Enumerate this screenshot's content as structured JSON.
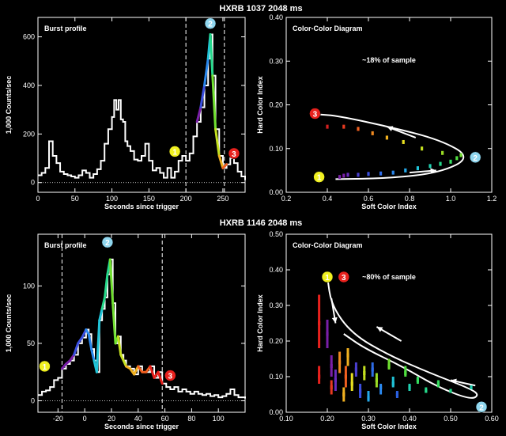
{
  "colors": {
    "background": "#000000",
    "foreground": "#ffffff",
    "badge_yellow": "#f0f020",
    "badge_cyan": "#8fd6ee",
    "badge_red": "#e8211d"
  },
  "chart_data": [
    {
      "type": "line",
      "section_title": "HXRB 1037  2048 ms",
      "title": "Burst profile",
      "xlabel": "Seconds since trigger",
      "ylabel": "1,000 Counts/sec",
      "xlim": [
        0,
        280
      ],
      "ylim": [
        -40,
        680
      ],
      "xticks": [
        0,
        50,
        100,
        150,
        200,
        250
      ],
      "yticks": [
        0,
        200,
        400,
        600
      ],
      "dashed_vlines": [
        200,
        252
      ],
      "baseline_dotted": 0,
      "x": [
        0,
        5,
        10,
        15,
        20,
        25,
        30,
        35,
        40,
        45,
        50,
        55,
        60,
        65,
        70,
        75,
        80,
        85,
        90,
        95,
        100,
        103,
        106,
        109,
        112,
        115,
        118,
        121,
        125,
        130,
        135,
        140,
        145,
        150,
        155,
        160,
        165,
        170,
        175,
        180,
        185,
        190,
        195,
        200,
        205,
        210,
        215,
        220,
        225,
        230,
        233,
        236,
        240,
        245,
        250,
        255,
        260,
        265,
        270,
        275,
        280
      ],
      "y": [
        30,
        40,
        60,
        170,
        110,
        80,
        45,
        35,
        30,
        25,
        20,
        30,
        50,
        40,
        20,
        35,
        55,
        90,
        160,
        220,
        270,
        340,
        300,
        340,
        260,
        250,
        170,
        150,
        130,
        95,
        90,
        110,
        160,
        90,
        50,
        60,
        40,
        20,
        60,
        20,
        45,
        90,
        110,
        90,
        120,
        190,
        250,
        310,
        400,
        510,
        610,
        440,
        220,
        110,
        60,
        75,
        100,
        80,
        45,
        25,
        10
      ],
      "colored_segment_x": [
        212,
        258
      ],
      "badges": [
        {
          "label": "1",
          "x": 185,
          "y": 128,
          "color": "yellow"
        },
        {
          "label": "2",
          "x": 233,
          "y": 655,
          "color": "cyan"
        },
        {
          "label": "3",
          "x": 265,
          "y": 120,
          "color": "red"
        }
      ]
    },
    {
      "type": "scatter",
      "title": "Color-Color Diagram",
      "annotation": "~18% of sample",
      "xlabel": "Soft Color Index",
      "ylabel": "Hard Color Index",
      "xlim": [
        0.2,
        1.2
      ],
      "ylim": [
        0.0,
        0.4
      ],
      "xticks": [
        0.2,
        0.4,
        0.6,
        0.8,
        1.0,
        1.2
      ],
      "yticks": [
        0.0,
        0.1,
        0.2,
        0.3,
        0.4
      ],
      "points": [
        {
          "x": 0.46,
          "y": 0.035,
          "c": "#7a1fa8"
        },
        {
          "x": 0.48,
          "y": 0.038,
          "c": "#7a1fa8"
        },
        {
          "x": 0.5,
          "y": 0.04,
          "c": "#6a2bbd"
        },
        {
          "x": 0.55,
          "y": 0.04,
          "c": "#4a3fd0"
        },
        {
          "x": 0.6,
          "y": 0.042,
          "c": "#3b4fe0"
        },
        {
          "x": 0.66,
          "y": 0.043,
          "c": "#2e6ce8"
        },
        {
          "x": 0.72,
          "y": 0.045,
          "c": "#2a88ee"
        },
        {
          "x": 0.78,
          "y": 0.05,
          "c": "#25a8e8"
        },
        {
          "x": 0.84,
          "y": 0.055,
          "c": "#20c4d8"
        },
        {
          "x": 0.9,
          "y": 0.06,
          "c": "#20d0b0"
        },
        {
          "x": 0.95,
          "y": 0.065,
          "c": "#25d88a"
        },
        {
          "x": 1.0,
          "y": 0.07,
          "c": "#35e060"
        },
        {
          "x": 1.03,
          "y": 0.078,
          "c": "#50e040"
        },
        {
          "x": 1.05,
          "y": 0.085,
          "c": "#70e030"
        },
        {
          "x": 0.96,
          "y": 0.09,
          "c": "#9adc25"
        },
        {
          "x": 0.86,
          "y": 0.1,
          "c": "#c4e020"
        },
        {
          "x": 0.77,
          "y": 0.115,
          "c": "#e8e020"
        },
        {
          "x": 0.69,
          "y": 0.125,
          "c": "#f0b020"
        },
        {
          "x": 0.62,
          "y": 0.135,
          "c": "#f08a20"
        },
        {
          "x": 0.55,
          "y": 0.145,
          "c": "#f06020"
        },
        {
          "x": 0.48,
          "y": 0.15,
          "c": "#e83a20"
        },
        {
          "x": 0.4,
          "y": 0.15,
          "c": "#d42020"
        }
      ],
      "loop_path": [
        [
          0.44,
          0.03
        ],
        [
          0.7,
          0.032
        ],
        [
          0.95,
          0.045
        ],
        [
          1.1,
          0.08
        ],
        [
          0.95,
          0.12
        ],
        [
          0.7,
          0.15
        ],
        [
          0.45,
          0.175
        ],
        [
          0.36,
          0.178
        ]
      ],
      "arrows": [
        {
          "from": [
            0.8,
            0.045
          ],
          "to": [
            0.93,
            0.05
          ]
        },
        {
          "from": [
            0.83,
            0.125
          ],
          "to": [
            0.69,
            0.15
          ]
        }
      ],
      "badges": [
        {
          "label": "1",
          "x": 0.36,
          "y": 0.035,
          "color": "yellow"
        },
        {
          "label": "2",
          "x": 1.12,
          "y": 0.08,
          "color": "cyan"
        },
        {
          "label": "3",
          "x": 0.34,
          "y": 0.18,
          "color": "red"
        }
      ]
    },
    {
      "type": "line",
      "section_title": "HXRB 1146  2048 ms",
      "title": "Burst profile",
      "xlabel": "Seconds since trigger",
      "ylabel": "1,000 Counts/sec",
      "xlim": [
        -35,
        120
      ],
      "ylim": [
        -10,
        145
      ],
      "xticks": [
        -20,
        0,
        20,
        40,
        60,
        80,
        100
      ],
      "yticks": [
        0,
        50,
        100
      ],
      "dashed_vlines": [
        -17,
        58
      ],
      "baseline_dotted": 0,
      "x": [
        -35,
        -32,
        -29,
        -26,
        -23,
        -20,
        -17,
        -14,
        -11,
        -8,
        -5,
        -2,
        1,
        3,
        5,
        7,
        9,
        11,
        13,
        15,
        17,
        19,
        21,
        23,
        25,
        27,
        29,
        31,
        34,
        37,
        40,
        43,
        46,
        49,
        52,
        55,
        58,
        61,
        64,
        67,
        70,
        73,
        76,
        79,
        82,
        85,
        88,
        91,
        94,
        97,
        100,
        103,
        106,
        109,
        112,
        115,
        120
      ],
      "y": [
        5,
        8,
        9,
        12,
        18,
        20,
        28,
        32,
        35,
        40,
        50,
        55,
        62,
        58,
        45,
        35,
        25,
        70,
        80,
        90,
        110,
        123,
        85,
        50,
        56,
        40,
        35,
        30,
        28,
        23,
        30,
        25,
        25,
        30,
        20,
        25,
        15,
        12,
        10,
        12,
        8,
        10,
        8,
        6,
        8,
        6,
        5,
        6,
        4,
        5,
        3,
        4,
        6,
        10,
        5,
        3,
        2
      ],
      "colored_segment_x": [
        -17,
        60
      ],
      "badges": [
        {
          "label": "1",
          "x": -30,
          "y": 30,
          "color": "yellow"
        },
        {
          "label": "2",
          "x": 17,
          "y": 138,
          "color": "cyan"
        },
        {
          "label": "3",
          "x": 64,
          "y": 22,
          "color": "red"
        }
      ]
    },
    {
      "type": "scatter",
      "title": "Color-Color Diagram",
      "annotation": "~80% of sample",
      "xlabel": "Soft Color Index",
      "ylabel": "Hard Color Index",
      "xlim": [
        0.1,
        0.6
      ],
      "ylim": [
        0.0,
        0.5
      ],
      "xticks": [
        0.1,
        0.2,
        0.3,
        0.4,
        0.5,
        0.6
      ],
      "xtick_labels": [
        "0.10",
        "0.20",
        "0.30",
        "0.40",
        "0.50",
        "0.60"
      ],
      "yticks": [
        0.0,
        0.1,
        0.2,
        0.3,
        0.4,
        0.5
      ],
      "ytick_labels": [
        "0.00",
        "0.10",
        "0.20",
        "0.30",
        "0.40",
        "0.50"
      ],
      "points": [
        {
          "x": 0.18,
          "y": 0.25,
          "lo": 0.18,
          "hi": 0.33,
          "c": "#e8211d"
        },
        {
          "x": 0.18,
          "y": 0.1,
          "lo": 0.08,
          "hi": 0.13,
          "c": "#e8211d"
        },
        {
          "x": 0.2,
          "y": 0.22,
          "lo": 0.18,
          "hi": 0.26,
          "c": "#7a1fa8"
        },
        {
          "x": 0.21,
          "y": 0.13,
          "lo": 0.1,
          "hi": 0.16,
          "c": "#7a1fa8"
        },
        {
          "x": 0.21,
          "y": 0.07,
          "lo": 0.05,
          "hi": 0.09,
          "c": "#e83a20"
        },
        {
          "x": 0.22,
          "y": 0.09,
          "lo": 0.06,
          "hi": 0.12,
          "c": "#6a2bbd"
        },
        {
          "x": 0.23,
          "y": 0.14,
          "lo": 0.11,
          "hi": 0.17,
          "c": "#f08a20"
        },
        {
          "x": 0.24,
          "y": 0.05,
          "lo": 0.03,
          "hi": 0.07,
          "c": "#f0b020"
        },
        {
          "x": 0.245,
          "y": 0.1,
          "lo": 0.07,
          "hi": 0.13,
          "c": "#f06020"
        },
        {
          "x": 0.25,
          "y": 0.16,
          "lo": 0.13,
          "hi": 0.18,
          "c": "#f0b020"
        },
        {
          "x": 0.26,
          "y": 0.08,
          "lo": 0.06,
          "hi": 0.11,
          "c": "#e8e020"
        },
        {
          "x": 0.27,
          "y": 0.12,
          "lo": 0.1,
          "hi": 0.14,
          "c": "#4a3fd0"
        },
        {
          "x": 0.28,
          "y": 0.06,
          "lo": 0.04,
          "hi": 0.08,
          "c": "#3b4fe0"
        },
        {
          "x": 0.29,
          "y": 0.11,
          "lo": 0.09,
          "hi": 0.13,
          "c": "#c4e020"
        },
        {
          "x": 0.3,
          "y": 0.04,
          "lo": 0.03,
          "hi": 0.06,
          "c": "#25a8e8"
        },
        {
          "x": 0.31,
          "y": 0.12,
          "lo": 0.1,
          "hi": 0.14,
          "c": "#2e6ce8"
        },
        {
          "x": 0.32,
          "y": 0.09,
          "lo": 0.07,
          "hi": 0.11,
          "c": "#9adc25"
        },
        {
          "x": 0.33,
          "y": 0.07,
          "lo": 0.05,
          "hi": 0.08,
          "c": "#2a88ee"
        },
        {
          "x": 0.35,
          "y": 0.13,
          "lo": 0.12,
          "hi": 0.15,
          "c": "#70e030"
        },
        {
          "x": 0.36,
          "y": 0.08,
          "lo": 0.07,
          "hi": 0.1,
          "c": "#20c4d8"
        },
        {
          "x": 0.37,
          "y": 0.05,
          "lo": 0.04,
          "hi": 0.06,
          "c": "#2a60e0"
        },
        {
          "x": 0.39,
          "y": 0.11,
          "lo": 0.1,
          "hi": 0.13,
          "c": "#50e040"
        },
        {
          "x": 0.4,
          "y": 0.07,
          "lo": 0.06,
          "hi": 0.08,
          "c": "#20d0b0"
        },
        {
          "x": 0.42,
          "y": 0.09,
          "lo": 0.08,
          "hi": 0.1,
          "c": "#35e060"
        },
        {
          "x": 0.44,
          "y": 0.06,
          "lo": 0.055,
          "hi": 0.07,
          "c": "#25d88a"
        },
        {
          "x": 0.47,
          "y": 0.08,
          "lo": 0.07,
          "hi": 0.09,
          "c": "#35e060"
        },
        {
          "x": 0.5,
          "y": 0.06,
          "lo": 0.055,
          "hi": 0.065,
          "c": "#25d88a"
        },
        {
          "x": 0.55,
          "y": 0.07,
          "lo": 0.065,
          "hi": 0.075,
          "c": "#20d0b0"
        }
      ],
      "loop_path": [
        [
          0.2,
          0.38
        ],
        [
          0.21,
          0.3
        ],
        [
          0.26,
          0.22
        ],
        [
          0.35,
          0.16
        ],
        [
          0.45,
          0.11
        ],
        [
          0.54,
          0.07
        ],
        [
          0.57,
          0.05
        ],
        [
          0.55,
          0.035
        ],
        [
          0.47,
          0.07
        ],
        [
          0.38,
          0.13
        ],
        [
          0.29,
          0.18
        ],
        [
          0.24,
          0.22
        ]
      ],
      "arrows": [
        {
          "from": [
            0.21,
            0.32
          ],
          "to": [
            0.22,
            0.25
          ]
        },
        {
          "from": [
            0.38,
            0.2
          ],
          "to": [
            0.32,
            0.24
          ]
        },
        {
          "from": [
            0.56,
            0.075
          ],
          "to": [
            0.5,
            0.09
          ]
        }
      ],
      "badges": [
        {
          "label": "1",
          "x": 0.2,
          "y": 0.38,
          "color": "yellow"
        },
        {
          "label": "2",
          "x": 0.575,
          "y": 0.015,
          "color": "cyan"
        },
        {
          "label": "3",
          "x": 0.24,
          "y": 0.38,
          "color": "red"
        }
      ]
    }
  ]
}
